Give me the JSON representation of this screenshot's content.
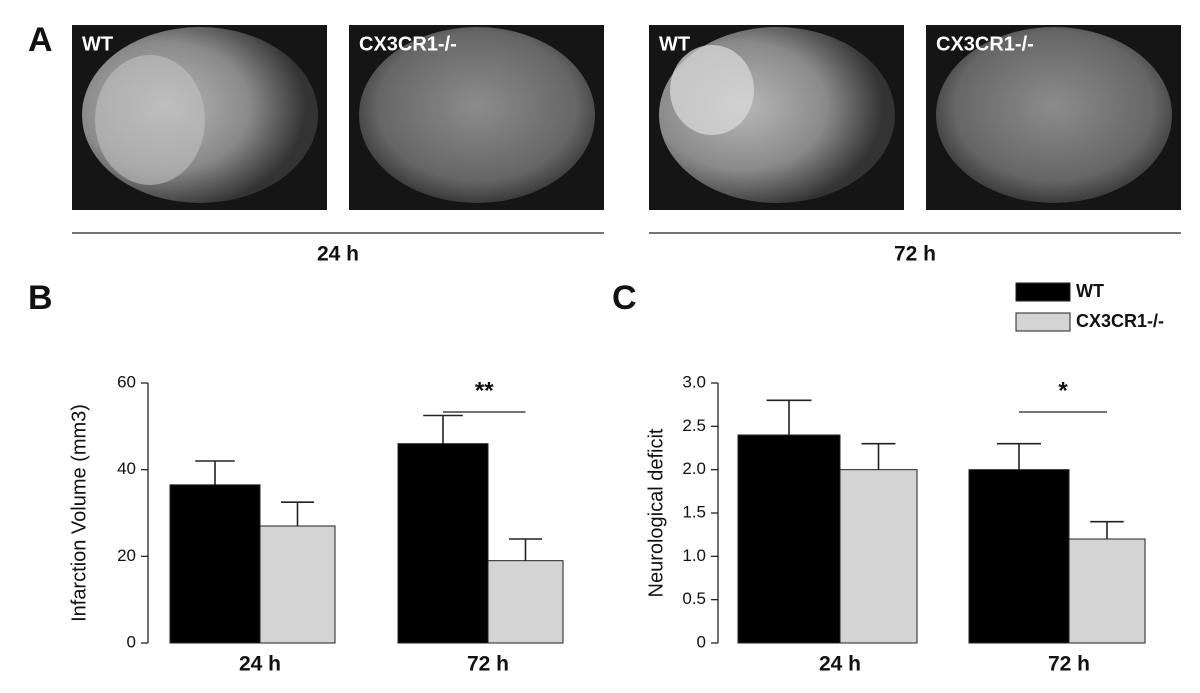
{
  "panel_a": {
    "label": "A",
    "images": [
      {
        "label": "WT"
      },
      {
        "label": "CX3CR1-/-"
      },
      {
        "label": "WT"
      },
      {
        "label": "CX3CR1-/-"
      }
    ],
    "time_labels": [
      "24 h",
      "72 h"
    ]
  },
  "chart_data": [
    {
      "type": "bar",
      "panel_label": "B",
      "y_label": "Infarction Volume (mm3)",
      "categories": [
        "24 h",
        "72 h"
      ],
      "series": [
        {
          "name": "WT",
          "color": "#000000",
          "values": [
            36.5,
            46
          ],
          "errors": [
            5.5,
            6.5
          ]
        },
        {
          "name": "CX3CR1-/-",
          "color": "#d4d4d4",
          "values": [
            27,
            19
          ],
          "errors": [
            5.5,
            5
          ]
        }
      ],
      "ylim": [
        0,
        60
      ],
      "yticks": [
        0,
        20,
        40,
        60
      ],
      "annotations": [
        {
          "text": "**",
          "category": 1
        }
      ]
    },
    {
      "type": "bar",
      "panel_label": "C",
      "y_label": "Neurological deficit",
      "categories": [
        "24 h",
        "72 h"
      ],
      "series": [
        {
          "name": "WT",
          "color": "#000000",
          "values": [
            2.4,
            2.0
          ],
          "errors": [
            0.4,
            0.3
          ]
        },
        {
          "name": "CX3CR1-/-",
          "color": "#d4d4d4",
          "values": [
            2.0,
            1.2
          ],
          "errors": [
            0.3,
            0.2
          ]
        }
      ],
      "ylim": [
        0,
        3
      ],
      "yticks": [
        0,
        {
          "value": 0.5,
          "label": "0.5"
        },
        {
          "value": 1,
          "label": "1.0"
        },
        {
          "value": 1.5,
          "label": "1.5"
        },
        {
          "value": 2,
          "label": "2.0"
        },
        {
          "value": 2.5,
          "label": "2.5"
        },
        {
          "value": 3,
          "label": "3.0"
        }
      ],
      "annotations": [
        {
          "text": "*",
          "category": 1
        }
      ],
      "legend": "top-right"
    }
  ]
}
